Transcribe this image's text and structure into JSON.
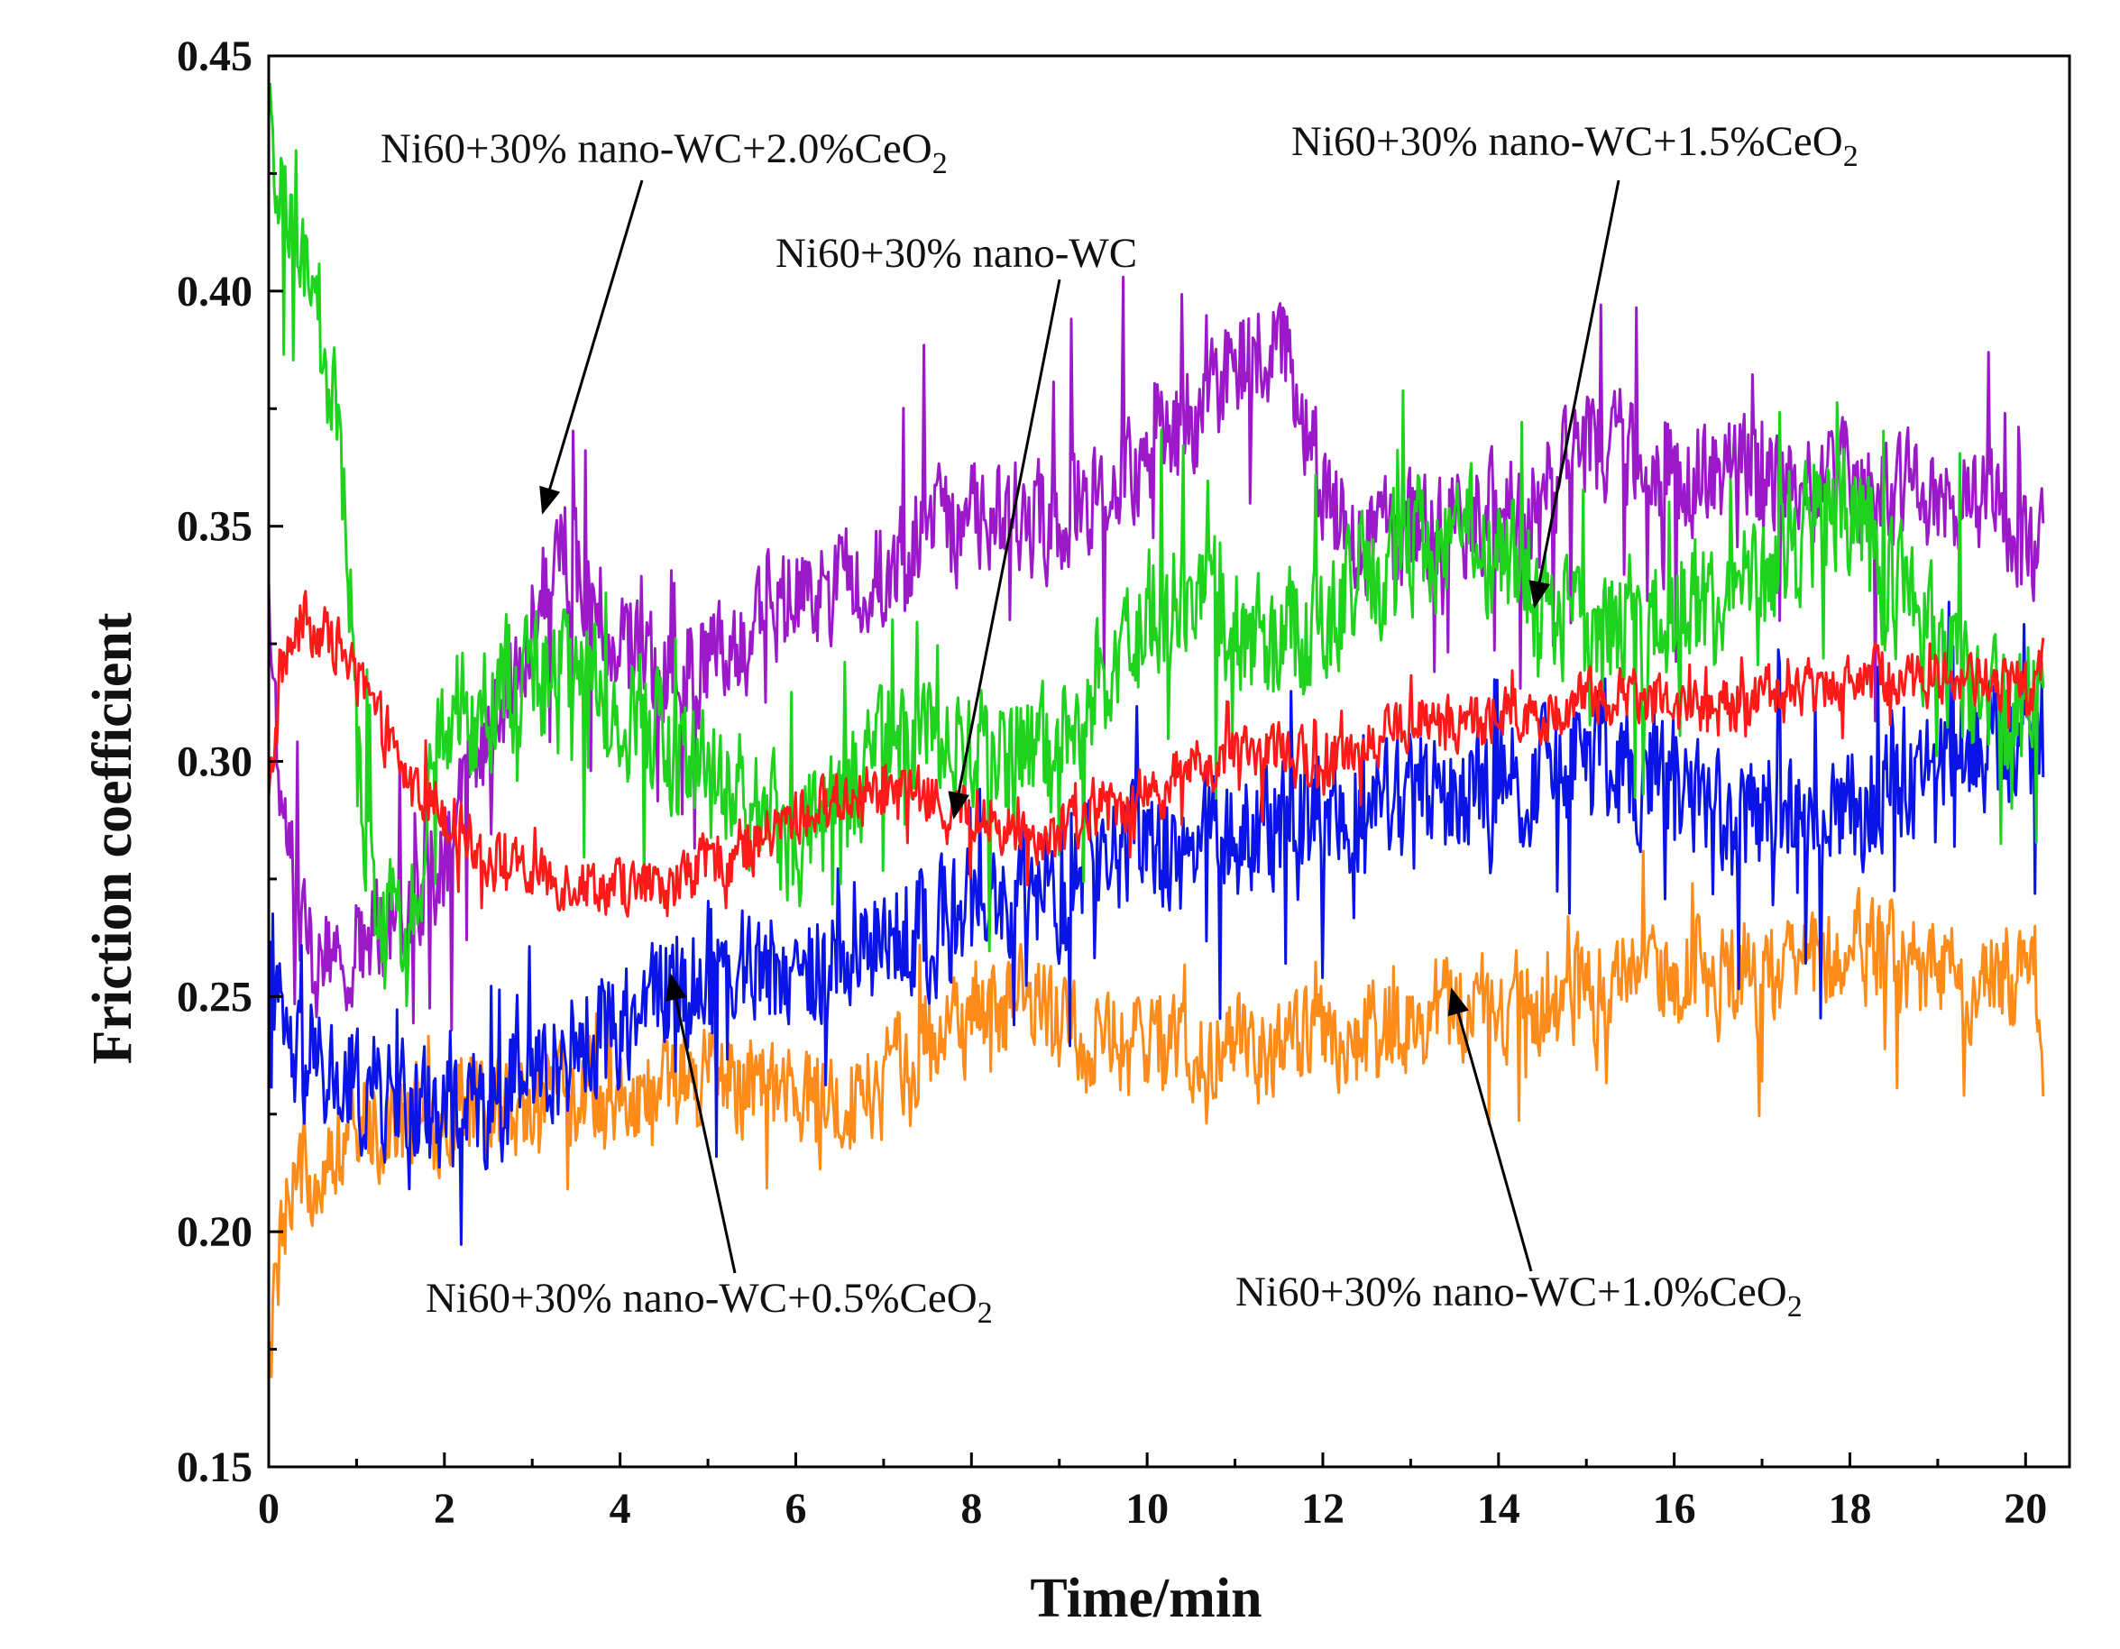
{
  "chart_data": {
    "type": "line",
    "xlabel": "Time/min",
    "ylabel": "Friction coefficient",
    "xlim": [
      0,
      20.5
    ],
    "ylim": [
      0.15,
      0.45
    ],
    "xticks": [
      "0",
      "2",
      "4",
      "6",
      "8",
      "10",
      "12",
      "14",
      "16",
      "18",
      "20"
    ],
    "yticks": [
      "0.15",
      "0.20",
      "0.25",
      "0.30",
      "0.35",
      "0.40",
      "0.45"
    ],
    "grid": false,
    "series": [
      {
        "name": "Ni60+30% nano-WC",
        "color": "#ff1a1a",
        "x_end": 20.2,
        "noise": 0.006,
        "spike": 0.006,
        "points": [
          [
            0,
            0.29
          ],
          [
            0.15,
            0.32
          ],
          [
            0.4,
            0.33
          ],
          [
            0.8,
            0.325
          ],
          [
            1.2,
            0.31
          ],
          [
            1.6,
            0.295
          ],
          [
            2.0,
            0.29
          ],
          [
            2.5,
            0.28
          ],
          [
            3,
            0.275
          ],
          [
            3.5,
            0.275
          ],
          [
            4,
            0.273
          ],
          [
            4.5,
            0.273
          ],
          [
            5,
            0.278
          ],
          [
            5.5,
            0.282
          ],
          [
            6,
            0.288
          ],
          [
            6.5,
            0.292
          ],
          [
            7,
            0.295
          ],
          [
            7.5,
            0.292
          ],
          [
            8,
            0.288
          ],
          [
            8.5,
            0.285
          ],
          [
            9,
            0.285
          ],
          [
            9.5,
            0.29
          ],
          [
            10,
            0.293
          ],
          [
            10.5,
            0.298
          ],
          [
            11,
            0.3
          ],
          [
            11.5,
            0.302
          ],
          [
            12,
            0.298
          ],
          [
            12.5,
            0.305
          ],
          [
            13,
            0.308
          ],
          [
            13.5,
            0.308
          ],
          [
            14,
            0.31
          ],
          [
            14.5,
            0.31
          ],
          [
            15,
            0.313
          ],
          [
            15.5,
            0.315
          ],
          [
            16,
            0.312
          ],
          [
            16.5,
            0.31
          ],
          [
            17,
            0.315
          ],
          [
            17.5,
            0.315
          ],
          [
            18,
            0.318
          ],
          [
            18.5,
            0.318
          ],
          [
            19,
            0.318
          ],
          [
            19.5,
            0.318
          ],
          [
            20,
            0.315
          ],
          [
            20.2,
            0.32
          ]
        ]
      },
      {
        "name": "Ni60+30% nano-WC+0.5%CeO2",
        "color": "#0a14e6",
        "x_end": 20.2,
        "noise": 0.013,
        "spike": 0.02,
        "points": [
          [
            0,
            0.25
          ],
          [
            0.3,
            0.235
          ],
          [
            1,
            0.23
          ],
          [
            1.5,
            0.228
          ],
          [
            2,
            0.225
          ],
          [
            2.5,
            0.228
          ],
          [
            3,
            0.233
          ],
          [
            3.5,
            0.24
          ],
          [
            4,
            0.245
          ],
          [
            4.5,
            0.252
          ],
          [
            5,
            0.255
          ],
          [
            5.5,
            0.258
          ],
          [
            6,
            0.255
          ],
          [
            6.5,
            0.258
          ],
          [
            7,
            0.262
          ],
          [
            7.5,
            0.265
          ],
          [
            8,
            0.268
          ],
          [
            8.5,
            0.27
          ],
          [
            9,
            0.272
          ],
          [
            9.5,
            0.278
          ],
          [
            10,
            0.282
          ],
          [
            10.5,
            0.283
          ],
          [
            11,
            0.285
          ],
          [
            11.5,
            0.287
          ],
          [
            12,
            0.288
          ],
          [
            12.5,
            0.29
          ],
          [
            13,
            0.292
          ],
          [
            13.5,
            0.293
          ],
          [
            14,
            0.295
          ],
          [
            14.5,
            0.297
          ],
          [
            15,
            0.298
          ],
          [
            15.5,
            0.298
          ],
          [
            16,
            0.295
          ],
          [
            16.5,
            0.29
          ],
          [
            17,
            0.288
          ],
          [
            17.5,
            0.287
          ],
          [
            18,
            0.29
          ],
          [
            18.5,
            0.295
          ],
          [
            19,
            0.3
          ],
          [
            19.5,
            0.303
          ],
          [
            20,
            0.305
          ],
          [
            20.2,
            0.305
          ]
        ]
      },
      {
        "name": "Ni60+30% nano-WC+1.0%CeO2",
        "color": "#ff8c1a",
        "x_end": 20.2,
        "noise": 0.011,
        "spike": 0.012,
        "points": [
          [
            0,
            0.17
          ],
          [
            0.15,
            0.2
          ],
          [
            0.5,
            0.215
          ],
          [
            1,
            0.222
          ],
          [
            1.5,
            0.225
          ],
          [
            2,
            0.225
          ],
          [
            2.5,
            0.226
          ],
          [
            3,
            0.228
          ],
          [
            3.5,
            0.228
          ],
          [
            4,
            0.228
          ],
          [
            4.5,
            0.23
          ],
          [
            5,
            0.232
          ],
          [
            5.5,
            0.232
          ],
          [
            6,
            0.228
          ],
          [
            6.5,
            0.226
          ],
          [
            7,
            0.232
          ],
          [
            7.5,
            0.24
          ],
          [
            8,
            0.245
          ],
          [
            8.5,
            0.248
          ],
          [
            9,
            0.245
          ],
          [
            9.5,
            0.24
          ],
          [
            10,
            0.238
          ],
          [
            10.5,
            0.238
          ],
          [
            11,
            0.24
          ],
          [
            11.5,
            0.24
          ],
          [
            12,
            0.24
          ],
          [
            12.5,
            0.243
          ],
          [
            13,
            0.245
          ],
          [
            13.5,
            0.248
          ],
          [
            14,
            0.248
          ],
          [
            14.5,
            0.25
          ],
          [
            15,
            0.252
          ],
          [
            15.5,
            0.255
          ],
          [
            16,
            0.255
          ],
          [
            16.5,
            0.253
          ],
          [
            17,
            0.253
          ],
          [
            17.5,
            0.255
          ],
          [
            18,
            0.26
          ],
          [
            18.5,
            0.258
          ],
          [
            19,
            0.255
          ],
          [
            19.5,
            0.252
          ],
          [
            20,
            0.255
          ],
          [
            20.2,
            0.24
          ]
        ]
      },
      {
        "name": "Ni60+30% nano-WC+1.5%CeO2",
        "color": "#1ed21e",
        "x_end": 20.2,
        "noise": 0.014,
        "spike": 0.022,
        "points": [
          [
            0,
            0.43
          ],
          [
            0.2,
            0.41
          ],
          [
            0.4,
            0.4
          ],
          [
            0.6,
            0.39
          ],
          [
            0.8,
            0.37
          ],
          [
            1.0,
            0.3
          ],
          [
            1.3,
            0.26
          ],
          [
            1.6,
            0.27
          ],
          [
            2,
            0.305
          ],
          [
            2.5,
            0.315
          ],
          [
            3,
            0.318
          ],
          [
            3.5,
            0.318
          ],
          [
            4,
            0.312
          ],
          [
            4.5,
            0.305
          ],
          [
            5,
            0.295
          ],
          [
            5.5,
            0.29
          ],
          [
            6,
            0.283
          ],
          [
            6.5,
            0.29
          ],
          [
            7,
            0.3
          ],
          [
            7.5,
            0.305
          ],
          [
            8,
            0.3
          ],
          [
            8.5,
            0.298
          ],
          [
            9,
            0.302
          ],
          [
            9.5,
            0.32
          ],
          [
            10,
            0.33
          ],
          [
            10.5,
            0.335
          ],
          [
            11,
            0.33
          ],
          [
            11.5,
            0.325
          ],
          [
            12,
            0.33
          ],
          [
            12.5,
            0.34
          ],
          [
            13,
            0.345
          ],
          [
            13.5,
            0.35
          ],
          [
            14,
            0.345
          ],
          [
            14.5,
            0.335
          ],
          [
            15,
            0.33
          ],
          [
            15.5,
            0.325
          ],
          [
            16,
            0.33
          ],
          [
            16.5,
            0.335
          ],
          [
            17,
            0.34
          ],
          [
            17.5,
            0.35
          ],
          [
            18,
            0.355
          ],
          [
            18.5,
            0.335
          ],
          [
            19,
            0.325
          ],
          [
            19.5,
            0.31
          ],
          [
            20,
            0.31
          ],
          [
            20.2,
            0.325
          ]
        ]
      },
      {
        "name": "Ni60+30% nano-WC+2.0%CeO2",
        "color": "#9b19c8",
        "x_end": 20.2,
        "noise": 0.012,
        "spike": 0.025,
        "points": [
          [
            0,
            0.33
          ],
          [
            0.2,
            0.28
          ],
          [
            0.5,
            0.255
          ],
          [
            1,
            0.26
          ],
          [
            1.5,
            0.27
          ],
          [
            2,
            0.28
          ],
          [
            2.5,
            0.305
          ],
          [
            3,
            0.33
          ],
          [
            3.3,
            0.345
          ],
          [
            3.7,
            0.335
          ],
          [
            4,
            0.325
          ],
          [
            4.5,
            0.318
          ],
          [
            5,
            0.322
          ],
          [
            5.5,
            0.328
          ],
          [
            6,
            0.335
          ],
          [
            6.5,
            0.338
          ],
          [
            7,
            0.34
          ],
          [
            7.5,
            0.347
          ],
          [
            8,
            0.352
          ],
          [
            8.5,
            0.352
          ],
          [
            9,
            0.352
          ],
          [
            9.5,
            0.358
          ],
          [
            10,
            0.368
          ],
          [
            10.5,
            0.372
          ],
          [
            11,
            0.382
          ],
          [
            11.5,
            0.388
          ],
          [
            12,
            0.36
          ],
          [
            12.5,
            0.347
          ],
          [
            13,
            0.348
          ],
          [
            13.5,
            0.35
          ],
          [
            14,
            0.352
          ],
          [
            14.5,
            0.358
          ],
          [
            15,
            0.365
          ],
          [
            15.5,
            0.365
          ],
          [
            16,
            0.362
          ],
          [
            16.5,
            0.36
          ],
          [
            17,
            0.36
          ],
          [
            17.5,
            0.358
          ],
          [
            18,
            0.36
          ],
          [
            18.5,
            0.355
          ],
          [
            19,
            0.36
          ],
          [
            19.5,
            0.355
          ],
          [
            20,
            0.348
          ],
          [
            20.2,
            0.345
          ]
        ]
      }
    ],
    "annotations": [
      {
        "base": "Ni60+30% nano-WC+2.0%CeO",
        "sub": "2",
        "series": "Ni60+30% nano-WC+2.0%CeO2"
      },
      {
        "base": "Ni60+30% nano-WC",
        "sub": "",
        "series": "Ni60+30% nano-WC"
      },
      {
        "base": "Ni60+30% nano-WC+1.5%CeO",
        "sub": "2",
        "series": "Ni60+30% nano-WC+1.5%CeO2"
      },
      {
        "base": "Ni60+30% nano-WC+0.5%CeO",
        "sub": "2",
        "series": "Ni60+30% nano-WC+0.5%CeO2"
      },
      {
        "base": "Ni60+30% nano-WC+1.0%CeO",
        "sub": "2",
        "series": "Ni60+30% nano-WC+1.0%CeO2"
      }
    ]
  }
}
